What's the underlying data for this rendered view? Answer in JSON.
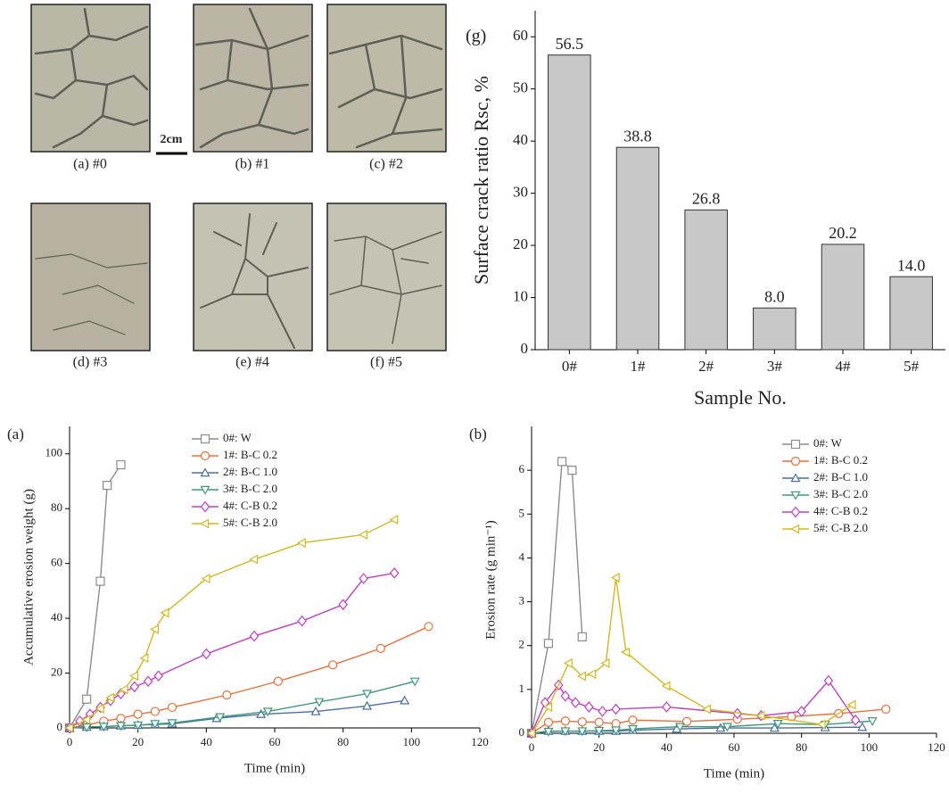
{
  "photos": {
    "captions": [
      "(a) #0",
      "(b) #1",
      "(c) #2",
      "(d) #3",
      "(e) #4",
      "(f) #5"
    ],
    "scale_bar": "2cm"
  },
  "chart_data": [
    {
      "type": "bar",
      "panel_label": "(g)",
      "ylabel": "Surface crack ratio Rsc, %",
      "xlabel": "Sample No.",
      "categories": [
        "0#",
        "1#",
        "2#",
        "3#",
        "4#",
        "5#"
      ],
      "values": [
        56.5,
        38.8,
        26.8,
        8.0,
        20.2,
        14.0
      ],
      "value_labels": [
        "56.5",
        "38.8",
        "26.8",
        "8.0",
        "20.2",
        "14.0"
      ],
      "color": "#c8c8c8",
      "ylim": [
        0,
        65
      ],
      "yticks": [
        0,
        10,
        20,
        30,
        40,
        50,
        60
      ]
    },
    {
      "type": "line",
      "panel_label": "(a)",
      "ylabel": "Accumulative erosion weight (g)",
      "xlabel": "Time (min)",
      "xlim": [
        0,
        120
      ],
      "xticks": [
        0,
        20,
        40,
        60,
        80,
        100,
        120
      ],
      "ylim": [
        0,
        110
      ],
      "yticks": [
        0,
        20,
        40,
        60,
        80,
        100
      ],
      "series": [
        {
          "name": "0#: W",
          "color": "#8c8c8c",
          "marker": "square",
          "x": [
            0,
            5,
            9,
            11,
            15
          ],
          "values": [
            0,
            10.5,
            53.5,
            88.5,
            96
          ]
        },
        {
          "name": "1#: B-C 0.2",
          "color": "#e8703a",
          "marker": "circle",
          "x": [
            0,
            5,
            10,
            15,
            20,
            25,
            30,
            46,
            61,
            77,
            91,
            105
          ],
          "values": [
            0,
            1,
            2.5,
            3.5,
            5,
            6,
            7.5,
            12,
            17,
            23,
            29,
            37
          ]
        },
        {
          "name": "2#: B-C 1.0",
          "color": "#4a6fa5",
          "marker": "triangle-up",
          "x": [
            0,
            5,
            10,
            15,
            20,
            25,
            30,
            43,
            56,
            72,
            87,
            98
          ],
          "values": [
            0,
            0.3,
            0.5,
            0.8,
            1,
            1.3,
            1.5,
            3.5,
            5,
            6,
            8,
            10
          ]
        },
        {
          "name": "3#: B-C 2.0",
          "color": "#3d9b7a",
          "marker": "triangle-down",
          "x": [
            0,
            5,
            10,
            15,
            20,
            25,
            30,
            44,
            58,
            73,
            87,
            101
          ],
          "values": [
            0,
            0.3,
            0.5,
            0.8,
            1,
            1.5,
            1.8,
            4,
            6,
            9.5,
            12.5,
            17
          ]
        },
        {
          "name": "4#: C-B 0.2",
          "color": "#c23ec2",
          "marker": "diamond",
          "x": [
            0,
            3,
            6,
            9,
            12,
            15,
            19,
            23,
            26,
            40,
            54,
            68,
            80,
            86,
            95
          ],
          "values": [
            0,
            2.5,
            5,
            7.5,
            10,
            12.5,
            15,
            17,
            19,
            27,
            33.5,
            39,
            45,
            54.5,
            56.5
          ]
        },
        {
          "name": "5#: C-B 2.0",
          "color": "#d4b81c",
          "marker": "triangle-left",
          "x": [
            0,
            5,
            9,
            12,
            16,
            19,
            22,
            25,
            28,
            40,
            54,
            68,
            86,
            95
          ],
          "values": [
            0,
            3,
            7,
            11,
            14,
            19,
            25.5,
            36,
            42,
            54.5,
            61.5,
            67.5,
            70.5,
            76
          ]
        }
      ]
    },
    {
      "type": "line",
      "panel_label": "(b)",
      "ylabel": "Erosion rate (g min⁻¹)",
      "xlabel": "Time (min)",
      "xlim": [
        0,
        120
      ],
      "xticks": [
        0,
        20,
        40,
        60,
        80,
        100,
        120
      ],
      "ylim": [
        0,
        7
      ],
      "yticks": [
        0,
        1,
        2,
        3,
        4,
        5,
        6
      ],
      "series": [
        {
          "name": "0#: W",
          "color": "#8c8c8c",
          "marker": "square",
          "x": [
            0,
            5,
            9,
            12,
            15
          ],
          "values": [
            0,
            2.05,
            6.2,
            6,
            2.2
          ]
        },
        {
          "name": "1#: B-C 0.2",
          "color": "#e8703a",
          "marker": "circle",
          "x": [
            0,
            5,
            10,
            15,
            20,
            25,
            30,
            46,
            61,
            77,
            91,
            105
          ],
          "values": [
            0,
            0.25,
            0.28,
            0.26,
            0.25,
            0.22,
            0.3,
            0.27,
            0.32,
            0.38,
            0.45,
            0.55
          ]
        },
        {
          "name": "2#: B-C 1.0",
          "color": "#4a6fa5",
          "marker": "triangle-up",
          "x": [
            0,
            5,
            10,
            15,
            20,
            25,
            30,
            43,
            56,
            72,
            87,
            98
          ],
          "values": [
            0,
            0.05,
            0.05,
            0.05,
            0.05,
            0.05,
            0.07,
            0.1,
            0.12,
            0.12,
            0.13,
            0.14
          ]
        },
        {
          "name": "3#: B-C 2.0",
          "color": "#3d9b7a",
          "marker": "triangle-down",
          "x": [
            0,
            5,
            10,
            15,
            20,
            25,
            30,
            44,
            58,
            73,
            87,
            101
          ],
          "values": [
            0,
            0.04,
            0.05,
            0.05,
            0.06,
            0.07,
            0.1,
            0.15,
            0.15,
            0.22,
            0.2,
            0.28
          ]
        },
        {
          "name": "4#: C-B 0.2",
          "color": "#c23ec2",
          "marker": "diamond",
          "x": [
            0,
            4,
            8,
            10,
            13,
            17,
            21,
            25,
            40,
            61,
            68,
            80,
            88,
            96
          ],
          "values": [
            0,
            0.7,
            1.1,
            0.85,
            0.7,
            0.6,
            0.5,
            0.55,
            0.6,
            0.45,
            0.4,
            0.5,
            1.2,
            0.3
          ]
        },
        {
          "name": "5#: C-B 2.0",
          "color": "#d4b81c",
          "marker": "triangle-left",
          "x": [
            0,
            5,
            11,
            15,
            18,
            22,
            25,
            28,
            40,
            52,
            68,
            86,
            95
          ],
          "values": [
            0,
            0.6,
            1.6,
            1.3,
            1.35,
            1.6,
            3.55,
            1.85,
            1.08,
            0.55,
            0.4,
            0.2,
            0.65
          ]
        }
      ]
    }
  ]
}
